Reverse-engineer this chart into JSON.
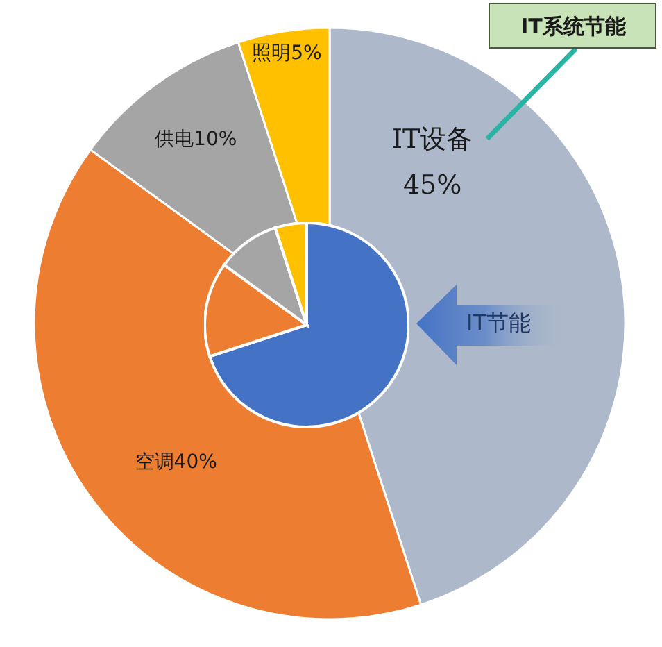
{
  "chart_data": [
    {
      "type": "pie",
      "categories": [
        "IT设备",
        "空调",
        "供电",
        "照明"
      ],
      "values": [
        45,
        40,
        10,
        5
      ],
      "value_labels": [
        "45%",
        "40%",
        "10%",
        "5%"
      ],
      "colors": [
        "#adb9ca",
        "#ed7d31",
        "#a5a5a5",
        "#ffc000"
      ],
      "annotations": [
        "IT系统节能"
      ]
    },
    {
      "type": "pie",
      "categories": [
        null,
        null,
        null,
        null
      ],
      "values": [
        70,
        15,
        10,
        5
      ],
      "colors": [
        "#4472c4",
        "#ed7d31",
        "#a5a5a5",
        "#ffc000"
      ],
      "annotations": [
        "IT节能"
      ]
    }
  ]
}
